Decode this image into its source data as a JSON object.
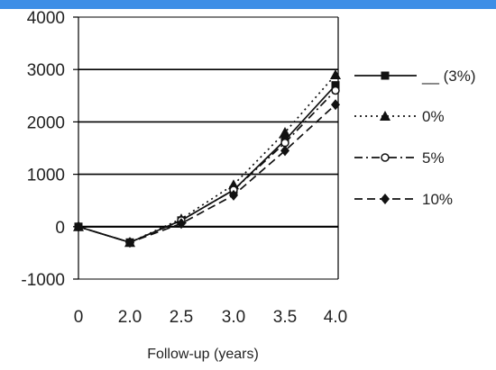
{
  "top_bar_color": "#3d8ee6",
  "chart_data": {
    "type": "line",
    "title": "",
    "xlabel": "Follow-up (years)",
    "ylabel": "",
    "categories": [
      "0",
      "2.0",
      "2.5",
      "3.0",
      "3.5",
      "4.0"
    ],
    "y_ticks": [
      "4000",
      "3000",
      "2000",
      "1000",
      "0",
      "-1000"
    ],
    "ylim": [
      -1000,
      4000
    ],
    "grid": "horizontal lines at 0, 1000, 2000, 3000",
    "legend_position": "right",
    "series": [
      {
        "name": "__ (3%)",
        "values": [
          0,
          -300,
          120,
          700,
          1650,
          2700
        ],
        "line_style": "solid",
        "marker": "square",
        "color": "#111111"
      },
      {
        "name": "0%",
        "values": [
          0,
          -300,
          150,
          800,
          1800,
          2900
        ],
        "line_style": "dotted",
        "marker": "triangle",
        "color": "#111111"
      },
      {
        "name": "5%",
        "values": [
          0,
          -300,
          120,
          700,
          1600,
          2600
        ],
        "line_style": "dash-dot",
        "marker": "circle",
        "color": "#111111"
      },
      {
        "name": "10%",
        "values": [
          0,
          -300,
          60,
          600,
          1450,
          2330
        ],
        "line_style": "dashed",
        "marker": "diamond",
        "color": "#111111"
      }
    ]
  }
}
